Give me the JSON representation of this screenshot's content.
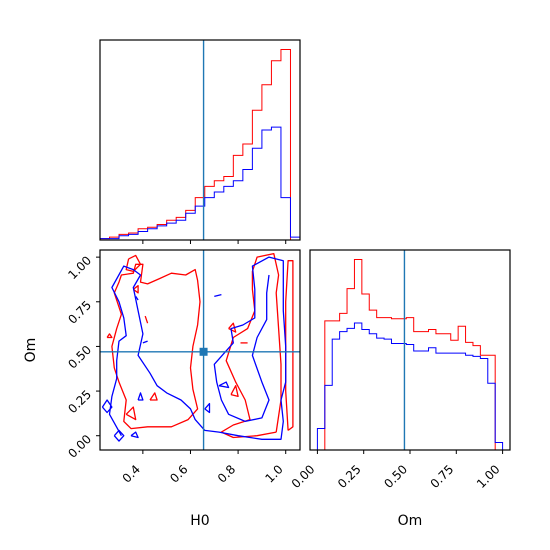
{
  "chart_data": [
    {
      "type": "histogram",
      "panel": "H0-marginal",
      "xlim": [
        0.22,
        1.06
      ],
      "truth": 0.655,
      "bin_edges": [
        0.22,
        0.26,
        0.3,
        0.34,
        0.38,
        0.42,
        0.46,
        0.5,
        0.54,
        0.58,
        0.62,
        0.66,
        0.7,
        0.74,
        0.78,
        0.82,
        0.86,
        0.9,
        0.94,
        0.98,
        1.02,
        1.06
      ],
      "series": [
        {
          "color": "#ff0000",
          "values": [
            1,
            2,
            4,
            5,
            8,
            9,
            11,
            14,
            16,
            21,
            30,
            38,
            42,
            45,
            60,
            68,
            92,
            110,
            127,
            135,
            0
          ]
        },
        {
          "color": "#0000ff",
          "values": [
            1,
            1,
            3,
            4,
            6,
            8,
            10,
            12,
            14,
            19,
            24,
            30,
            34,
            38,
            42,
            50,
            65,
            78,
            80,
            30,
            2
          ]
        }
      ]
    },
    {
      "type": "histogram",
      "panel": "Om-marginal",
      "xlim": [
        -0.04,
        1.04
      ],
      "truth": 0.47,
      "bin_edges": [
        0.0,
        0.04,
        0.08,
        0.12,
        0.16,
        0.2,
        0.24,
        0.28,
        0.32,
        0.36,
        0.4,
        0.44,
        0.48,
        0.52,
        0.56,
        0.6,
        0.64,
        0.68,
        0.72,
        0.76,
        0.8,
        0.84,
        0.88,
        0.92,
        0.96,
        1.0
      ],
      "series": [
        {
          "color": "#ff0000",
          "values": [
            0,
            120,
            120,
            127,
            150,
            177,
            145,
            130,
            123,
            123,
            122,
            122,
            123,
            110,
            110,
            112,
            108,
            108,
            102,
            115,
            100,
            97,
            88,
            88,
            0
          ]
        },
        {
          "color": "#0000ff",
          "values": [
            20,
            60,
            103,
            110,
            113,
            118,
            112,
            108,
            104,
            103,
            99,
            99,
            98,
            92,
            92,
            95,
            90,
            90,
            90,
            90,
            88,
            87,
            85,
            62,
            7
          ]
        }
      ]
    },
    {
      "type": "contour",
      "panel": "H0-Om-joint",
      "xlabel": "H0",
      "ylabel": "Om",
      "xlim": [
        0.22,
        1.06
      ],
      "ylim": [
        -0.08,
        1.04
      ],
      "xticks": [
        "0.4",
        "0.6",
        "0.8",
        "1.0"
      ],
      "xtick_values": [
        0.4,
        0.6,
        0.8,
        1.0
      ],
      "yticks": [
        "0.00",
        "0.25",
        "0.50",
        "0.75",
        "1.00"
      ],
      "ytick_values": [
        0.0,
        0.25,
        0.5,
        0.75,
        1.0
      ],
      "truth": [
        0.655,
        0.47
      ],
      "series": [
        {
          "color": "#ff0000",
          "contours": [
            [
              [
                0.28,
                0.38
              ],
              [
                0.27,
                0.5
              ],
              [
                0.29,
                0.6
              ],
              [
                0.31,
                0.68
              ],
              [
                0.28,
                0.8
              ],
              [
                0.3,
                0.86
              ],
              [
                0.31,
                0.9
              ],
              [
                0.36,
                0.91
              ],
              [
                0.37,
                0.96
              ],
              [
                0.4,
                0.96
              ],
              [
                0.39,
                0.86
              ],
              [
                0.42,
                0.85
              ],
              [
                0.47,
                0.88
              ],
              [
                0.52,
                0.91
              ],
              [
                0.58,
                0.9
              ],
              [
                0.62,
                0.93
              ],
              [
                0.63,
                0.87
              ],
              [
                0.64,
                0.75
              ],
              [
                0.63,
                0.62
              ],
              [
                0.61,
                0.5
              ],
              [
                0.6,
                0.38
              ],
              [
                0.61,
                0.26
              ],
              [
                0.63,
                0.15
              ],
              [
                0.59,
                0.09
              ],
              [
                0.52,
                0.05
              ],
              [
                0.42,
                0.05
              ],
              [
                0.35,
                0.04
              ],
              [
                0.32,
                0.08
              ],
              [
                0.33,
                0.2
              ],
              [
                0.3,
                0.3
              ],
              [
                0.28,
                0.38
              ]
            ],
            [
              [
                0.34,
                0.99
              ],
              [
                0.33,
                0.93
              ],
              [
                0.36,
                0.92
              ],
              [
                0.39,
                0.96
              ],
              [
                0.37,
                1.01
              ],
              [
                0.34,
                0.99
              ]
            ],
            [
              [
                0.96,
                0.02
              ],
              [
                0.88,
                0.0
              ],
              [
                0.78,
                -0.01
              ],
              [
                0.73,
                0.02
              ],
              [
                0.78,
                0.06
              ],
              [
                0.85,
                0.09
              ],
              [
                0.83,
                0.2
              ],
              [
                0.79,
                0.3
              ],
              [
                0.75,
                0.42
              ],
              [
                0.78,
                0.55
              ],
              [
                0.84,
                0.6
              ],
              [
                0.87,
                0.7
              ],
              [
                0.86,
                0.82
              ],
              [
                0.86,
                0.92
              ],
              [
                0.88,
                1.0
              ],
              [
                0.95,
                1.02
              ],
              [
                0.97,
                0.9
              ],
              [
                0.96,
                0.8
              ],
              [
                0.97,
                0.6
              ],
              [
                0.98,
                0.4
              ],
              [
                0.98,
                0.2
              ],
              [
                0.96,
                0.02
              ]
            ],
            [
              [
                1.01,
                0.03
              ],
              [
                1.0,
                0.25
              ],
              [
                1.0,
                0.5
              ],
              [
                1.0,
                0.75
              ],
              [
                1.01,
                0.98
              ],
              [
                1.03,
                0.98
              ],
              [
                1.03,
                0.5
              ],
              [
                1.03,
                0.05
              ],
              [
                1.01,
                0.03
              ]
            ],
            [
              [
                0.25,
                0.55
              ],
              [
                0.26,
                0.57
              ],
              [
                0.27,
                0.55
              ],
              [
                0.25,
                0.55
              ]
            ],
            [
              [
                0.33,
                0.12
              ],
              [
                0.36,
                0.16
              ],
              [
                0.37,
                0.09
              ],
              [
                0.33,
                0.12
              ]
            ],
            [
              [
                0.43,
                0.2
              ],
              [
                0.45,
                0.24
              ],
              [
                0.46,
                0.2
              ],
              [
                0.43,
                0.2
              ]
            ],
            [
              [
                0.36,
                0.82
              ],
              [
                0.38,
                0.84
              ],
              [
                0.38,
                0.8
              ],
              [
                0.36,
                0.82
              ]
            ],
            [
              [
                0.81,
                0.52
              ],
              [
                0.84,
                0.52
              ]
            ],
            [
              [
                0.41,
                0.67
              ],
              [
                0.42,
                0.63
              ]
            ],
            [
              [
                0.77,
                0.23
              ],
              [
                0.79,
                0.28
              ],
              [
                0.8,
                0.22
              ],
              [
                0.77,
                0.23
              ]
            ],
            [
              [
                0.76,
                0.6
              ],
              [
                0.78,
                0.63
              ],
              [
                0.79,
                0.58
              ],
              [
                0.76,
                0.6
              ]
            ]
          ]
        },
        {
          "color": "#0000ff",
          "contours": [
            [
              [
                0.31,
                0.0
              ],
              [
                0.26,
                0.12
              ],
              [
                0.27,
                0.22
              ],
              [
                0.29,
                0.32
              ],
              [
                0.29,
                0.42
              ],
              [
                0.3,
                0.53
              ],
              [
                0.33,
                0.56
              ],
              [
                0.32,
                0.66
              ],
              [
                0.3,
                0.75
              ],
              [
                0.27,
                0.83
              ],
              [
                0.32,
                0.95
              ],
              [
                0.36,
                0.93
              ],
              [
                0.39,
                0.9
              ],
              [
                0.36,
                0.83
              ],
              [
                0.38,
                0.7
              ],
              [
                0.4,
                0.57
              ],
              [
                0.38,
                0.45
              ],
              [
                0.43,
                0.35
              ],
              [
                0.46,
                0.28
              ],
              [
                0.5,
                0.24
              ],
              [
                0.56,
                0.2
              ],
              [
                0.6,
                0.15
              ],
              [
                0.62,
                0.09
              ],
              [
                0.66,
                0.03
              ],
              [
                0.72,
                0.02
              ],
              [
                0.8,
                0.0
              ],
              [
                0.9,
                -0.02
              ],
              [
                0.98,
                -0.02
              ],
              [
                0.99,
                0.08
              ],
              [
                0.98,
                0.2
              ],
              [
                1.0,
                0.3
              ],
              [
                1.0,
                0.5
              ],
              [
                0.99,
                0.7
              ],
              [
                0.99,
                0.98
              ],
              [
                0.93,
                1.0
              ],
              [
                0.86,
                0.95
              ],
              [
                0.87,
                0.82
              ],
              [
                0.87,
                0.66
              ],
              [
                0.82,
                0.62
              ],
              [
                0.77,
                0.6
              ],
              [
                0.78,
                0.52
              ],
              [
                0.74,
                0.46
              ],
              [
                0.7,
                0.4
              ],
              [
                0.71,
                0.3
              ],
              [
                0.73,
                0.2
              ],
              [
                0.76,
                0.12
              ],
              [
                0.83,
                0.08
              ],
              [
                0.9,
                0.1
              ],
              [
                0.93,
                0.2
              ],
              [
                0.9,
                0.3
              ],
              [
                0.86,
                0.45
              ],
              [
                0.88,
                0.55
              ],
              [
                0.92,
                0.65
              ],
              [
                0.92,
                0.8
              ],
              [
                0.93,
                0.9
              ]
            ],
            [
              [
                0.23,
                0.16
              ],
              [
                0.25,
                0.2
              ],
              [
                0.27,
                0.16
              ],
              [
                0.25,
                0.13
              ],
              [
                0.23,
                0.16
              ]
            ],
            [
              [
                0.28,
                0.0
              ],
              [
                0.3,
                0.03
              ],
              [
                0.32,
                0.0
              ],
              [
                0.3,
                -0.03
              ],
              [
                0.28,
                0.0
              ]
            ],
            [
              [
                0.35,
                0.0
              ],
              [
                0.37,
                0.02
              ],
              [
                0.38,
                -0.01
              ],
              [
                0.35,
                0.0
              ]
            ],
            [
              [
                0.38,
                0.2
              ],
              [
                0.39,
                0.24
              ],
              [
                0.4,
                0.2
              ],
              [
                0.38,
                0.2
              ]
            ],
            [
              [
                0.66,
                0.15
              ],
              [
                0.68,
                0.18
              ],
              [
                0.68,
                0.13
              ],
              [
                0.66,
                0.15
              ]
            ],
            [
              [
                0.7,
                0.78
              ],
              [
                0.73,
                0.79
              ]
            ],
            [
              [
                0.72,
                0.28
              ],
              [
                0.75,
                0.3
              ],
              [
                0.76,
                0.27
              ],
              [
                0.72,
                0.28
              ]
            ],
            [
              [
                0.37,
                0.78
              ],
              [
                0.38,
                0.76
              ]
            ],
            [
              [
                0.4,
                0.52
              ],
              [
                0.42,
                0.53
              ]
            ]
          ]
        }
      ]
    }
  ]
}
